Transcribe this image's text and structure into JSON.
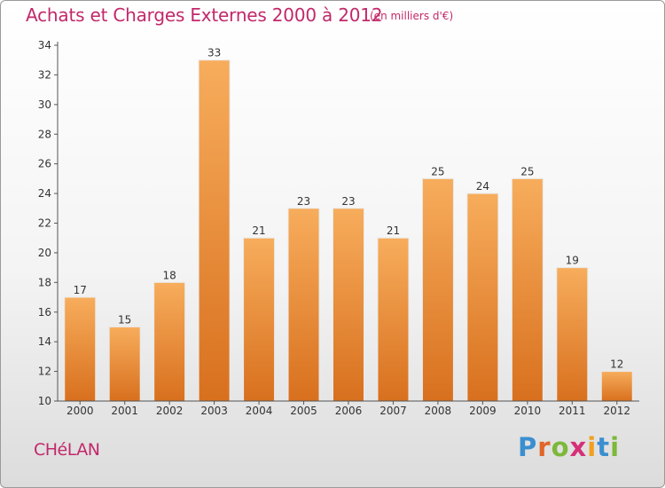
{
  "title": "Achats et Charges Externes 2000 à 2012",
  "subtitle": "(en milliers d'€)",
  "commune": "CHéLAN",
  "brand": {
    "letters": [
      "P",
      "r",
      "o",
      "x",
      "i",
      "t",
      "i"
    ],
    "colors": [
      "#3a8fd0",
      "#e0662a",
      "#7cb83a",
      "#d62f78",
      "#f0a020",
      "#3a8fd0",
      "#7cb83a"
    ]
  },
  "colors": {
    "title": "#c2286a",
    "bar_top": "#f7ad5c",
    "bar_bottom": "#d8701e",
    "axis": "#555555"
  },
  "chart_data": {
    "type": "bar",
    "title": "Achats et Charges Externes 2000 à 2012",
    "subtitle": "(en milliers d'€)",
    "categories": [
      "2000",
      "2001",
      "2002",
      "2003",
      "2004",
      "2005",
      "2006",
      "2007",
      "2008",
      "2009",
      "2010",
      "2011",
      "2012"
    ],
    "values": [
      17,
      15,
      18,
      33,
      21,
      23,
      23,
      21,
      25,
      24,
      25,
      19,
      12
    ],
    "ylim": [
      10,
      34
    ],
    "yticks": [
      10,
      12,
      14,
      16,
      18,
      20,
      22,
      24,
      26,
      28,
      30,
      32,
      34
    ],
    "grid": false,
    "data_labels": true
  }
}
